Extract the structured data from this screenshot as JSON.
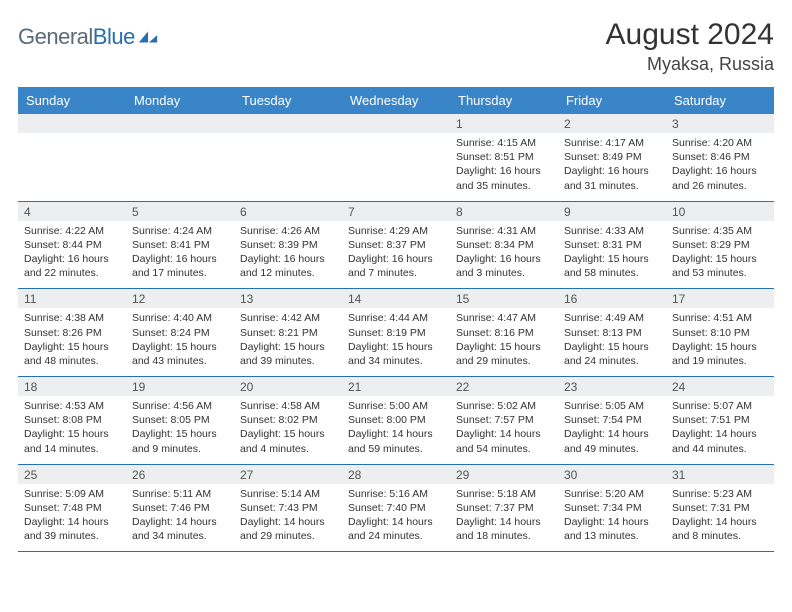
{
  "brand": {
    "part1": "General",
    "part2": "Blue"
  },
  "title": "August 2024",
  "location": "Myaksa, Russia",
  "colors": {
    "header_bg": "#3a85c8",
    "header_text": "#ffffff",
    "daynum_bg": "#eceeef",
    "row_border": "#2a6db0",
    "logo_gray": "#5a6b78",
    "logo_blue": "#2a6db0"
  },
  "weekdays": [
    "Sunday",
    "Monday",
    "Tuesday",
    "Wednesday",
    "Thursday",
    "Friday",
    "Saturday"
  ],
  "weeks": [
    {
      "nums": [
        "",
        "",
        "",
        "",
        "1",
        "2",
        "3"
      ],
      "cells": [
        null,
        null,
        null,
        null,
        {
          "sr": "Sunrise: 4:15 AM",
          "ss": "Sunset: 8:51 PM",
          "d1": "Daylight: 16 hours",
          "d2": "and 35 minutes."
        },
        {
          "sr": "Sunrise: 4:17 AM",
          "ss": "Sunset: 8:49 PM",
          "d1": "Daylight: 16 hours",
          "d2": "and 31 minutes."
        },
        {
          "sr": "Sunrise: 4:20 AM",
          "ss": "Sunset: 8:46 PM",
          "d1": "Daylight: 16 hours",
          "d2": "and 26 minutes."
        }
      ]
    },
    {
      "nums": [
        "4",
        "5",
        "6",
        "7",
        "8",
        "9",
        "10"
      ],
      "cells": [
        {
          "sr": "Sunrise: 4:22 AM",
          "ss": "Sunset: 8:44 PM",
          "d1": "Daylight: 16 hours",
          "d2": "and 22 minutes."
        },
        {
          "sr": "Sunrise: 4:24 AM",
          "ss": "Sunset: 8:41 PM",
          "d1": "Daylight: 16 hours",
          "d2": "and 17 minutes."
        },
        {
          "sr": "Sunrise: 4:26 AM",
          "ss": "Sunset: 8:39 PM",
          "d1": "Daylight: 16 hours",
          "d2": "and 12 minutes."
        },
        {
          "sr": "Sunrise: 4:29 AM",
          "ss": "Sunset: 8:37 PM",
          "d1": "Daylight: 16 hours",
          "d2": "and 7 minutes."
        },
        {
          "sr": "Sunrise: 4:31 AM",
          "ss": "Sunset: 8:34 PM",
          "d1": "Daylight: 16 hours",
          "d2": "and 3 minutes."
        },
        {
          "sr": "Sunrise: 4:33 AM",
          "ss": "Sunset: 8:31 PM",
          "d1": "Daylight: 15 hours",
          "d2": "and 58 minutes."
        },
        {
          "sr": "Sunrise: 4:35 AM",
          "ss": "Sunset: 8:29 PM",
          "d1": "Daylight: 15 hours",
          "d2": "and 53 minutes."
        }
      ]
    },
    {
      "nums": [
        "11",
        "12",
        "13",
        "14",
        "15",
        "16",
        "17"
      ],
      "cells": [
        {
          "sr": "Sunrise: 4:38 AM",
          "ss": "Sunset: 8:26 PM",
          "d1": "Daylight: 15 hours",
          "d2": "and 48 minutes."
        },
        {
          "sr": "Sunrise: 4:40 AM",
          "ss": "Sunset: 8:24 PM",
          "d1": "Daylight: 15 hours",
          "d2": "and 43 minutes."
        },
        {
          "sr": "Sunrise: 4:42 AM",
          "ss": "Sunset: 8:21 PM",
          "d1": "Daylight: 15 hours",
          "d2": "and 39 minutes."
        },
        {
          "sr": "Sunrise: 4:44 AM",
          "ss": "Sunset: 8:19 PM",
          "d1": "Daylight: 15 hours",
          "d2": "and 34 minutes."
        },
        {
          "sr": "Sunrise: 4:47 AM",
          "ss": "Sunset: 8:16 PM",
          "d1": "Daylight: 15 hours",
          "d2": "and 29 minutes."
        },
        {
          "sr": "Sunrise: 4:49 AM",
          "ss": "Sunset: 8:13 PM",
          "d1": "Daylight: 15 hours",
          "d2": "and 24 minutes."
        },
        {
          "sr": "Sunrise: 4:51 AM",
          "ss": "Sunset: 8:10 PM",
          "d1": "Daylight: 15 hours",
          "d2": "and 19 minutes."
        }
      ]
    },
    {
      "nums": [
        "18",
        "19",
        "20",
        "21",
        "22",
        "23",
        "24"
      ],
      "cells": [
        {
          "sr": "Sunrise: 4:53 AM",
          "ss": "Sunset: 8:08 PM",
          "d1": "Daylight: 15 hours",
          "d2": "and 14 minutes."
        },
        {
          "sr": "Sunrise: 4:56 AM",
          "ss": "Sunset: 8:05 PM",
          "d1": "Daylight: 15 hours",
          "d2": "and 9 minutes."
        },
        {
          "sr": "Sunrise: 4:58 AM",
          "ss": "Sunset: 8:02 PM",
          "d1": "Daylight: 15 hours",
          "d2": "and 4 minutes."
        },
        {
          "sr": "Sunrise: 5:00 AM",
          "ss": "Sunset: 8:00 PM",
          "d1": "Daylight: 14 hours",
          "d2": "and 59 minutes."
        },
        {
          "sr": "Sunrise: 5:02 AM",
          "ss": "Sunset: 7:57 PM",
          "d1": "Daylight: 14 hours",
          "d2": "and 54 minutes."
        },
        {
          "sr": "Sunrise: 5:05 AM",
          "ss": "Sunset: 7:54 PM",
          "d1": "Daylight: 14 hours",
          "d2": "and 49 minutes."
        },
        {
          "sr": "Sunrise: 5:07 AM",
          "ss": "Sunset: 7:51 PM",
          "d1": "Daylight: 14 hours",
          "d2": "and 44 minutes."
        }
      ]
    },
    {
      "nums": [
        "25",
        "26",
        "27",
        "28",
        "29",
        "30",
        "31"
      ],
      "cells": [
        {
          "sr": "Sunrise: 5:09 AM",
          "ss": "Sunset: 7:48 PM",
          "d1": "Daylight: 14 hours",
          "d2": "and 39 minutes."
        },
        {
          "sr": "Sunrise: 5:11 AM",
          "ss": "Sunset: 7:46 PM",
          "d1": "Daylight: 14 hours",
          "d2": "and 34 minutes."
        },
        {
          "sr": "Sunrise: 5:14 AM",
          "ss": "Sunset: 7:43 PM",
          "d1": "Daylight: 14 hours",
          "d2": "and 29 minutes."
        },
        {
          "sr": "Sunrise: 5:16 AM",
          "ss": "Sunset: 7:40 PM",
          "d1": "Daylight: 14 hours",
          "d2": "and 24 minutes."
        },
        {
          "sr": "Sunrise: 5:18 AM",
          "ss": "Sunset: 7:37 PM",
          "d1": "Daylight: 14 hours",
          "d2": "and 18 minutes."
        },
        {
          "sr": "Sunrise: 5:20 AM",
          "ss": "Sunset: 7:34 PM",
          "d1": "Daylight: 14 hours",
          "d2": "and 13 minutes."
        },
        {
          "sr": "Sunrise: 5:23 AM",
          "ss": "Sunset: 7:31 PM",
          "d1": "Daylight: 14 hours",
          "d2": "and 8 minutes."
        }
      ]
    }
  ]
}
